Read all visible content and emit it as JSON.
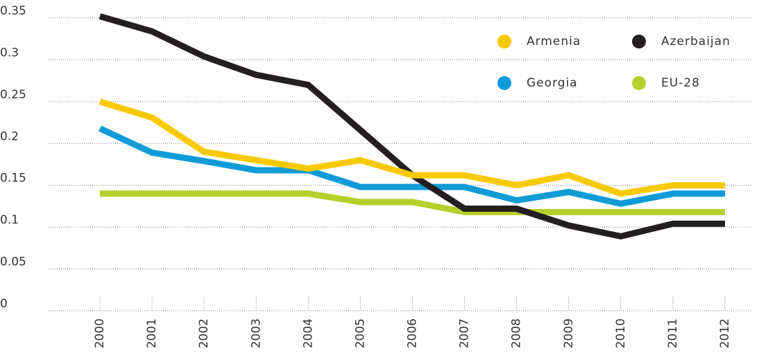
{
  "chart_data": {
    "type": "line",
    "categories": [
      "2000",
      "2001",
      "2002",
      "2003",
      "2004",
      "2005",
      "2006",
      "2007",
      "2008",
      "2009",
      "2010",
      "2011",
      "2012"
    ],
    "series": [
      {
        "name": "Armenia",
        "color": "#f9c900",
        "values": [
          0.25,
          0.231,
          0.19,
          0.18,
          0.17,
          0.18,
          0.162,
          0.162,
          0.15,
          0.162,
          0.14,
          0.15,
          0.15
        ]
      },
      {
        "name": "Azerbaijan",
        "color": "#231f20",
        "values": [
          0.352,
          0.334,
          0.304,
          0.282,
          0.27,
          0.216,
          0.162,
          0.122,
          0.122,
          0.102,
          0.089,
          0.104,
          0.104
        ]
      },
      {
        "name": "Georgia",
        "color": "#0f9bd7",
        "values": [
          0.218,
          0.189,
          0.179,
          0.168,
          0.168,
          0.148,
          0.148,
          0.148,
          0.132,
          0.142,
          0.128,
          0.14,
          0.14
        ]
      },
      {
        "name": "EU-28",
        "color": "#b5cf2b",
        "values": [
          0.14,
          0.14,
          0.14,
          0.14,
          0.14,
          0.13,
          0.13,
          0.118,
          0.118,
          0.118,
          0.118,
          0.118,
          0.118
        ]
      }
    ],
    "ylim": [
      0,
      0.35
    ],
    "yticks": [
      0,
      0.05,
      0.1,
      0.15,
      0.2,
      0.25,
      0.3,
      0.35
    ],
    "grid": true
  }
}
